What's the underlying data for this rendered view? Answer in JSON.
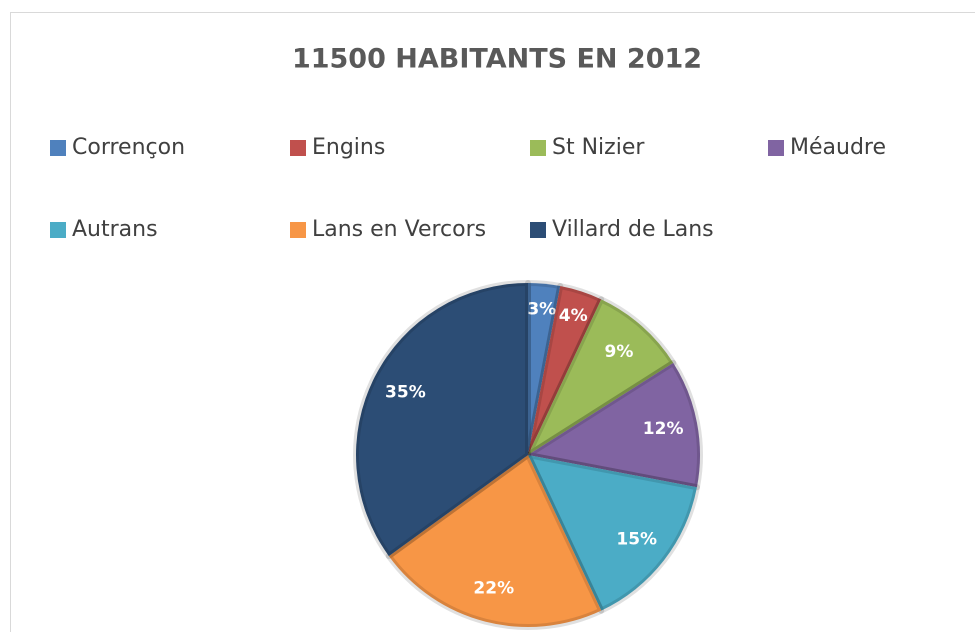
{
  "chart_data": {
    "type": "pie",
    "title": "11500 HABITANTS EN 2012",
    "categories": [
      "Corrençon",
      "Engins",
      "St Nizier",
      "Méaudre",
      "Autrans",
      "Lans en Vercors",
      "Villard de Lans"
    ],
    "values": [
      3,
      4,
      9,
      12,
      15,
      22,
      35
    ],
    "value_labels": [
      "3%",
      "4%",
      "9%",
      "12%",
      "15%",
      "22%",
      "35%"
    ],
    "colors": [
      "#4f81bd",
      "#c0504d",
      "#9bbb59",
      "#8064a2",
      "#4bacc6",
      "#f79646",
      "#2c4d75"
    ],
    "legend": "top"
  }
}
